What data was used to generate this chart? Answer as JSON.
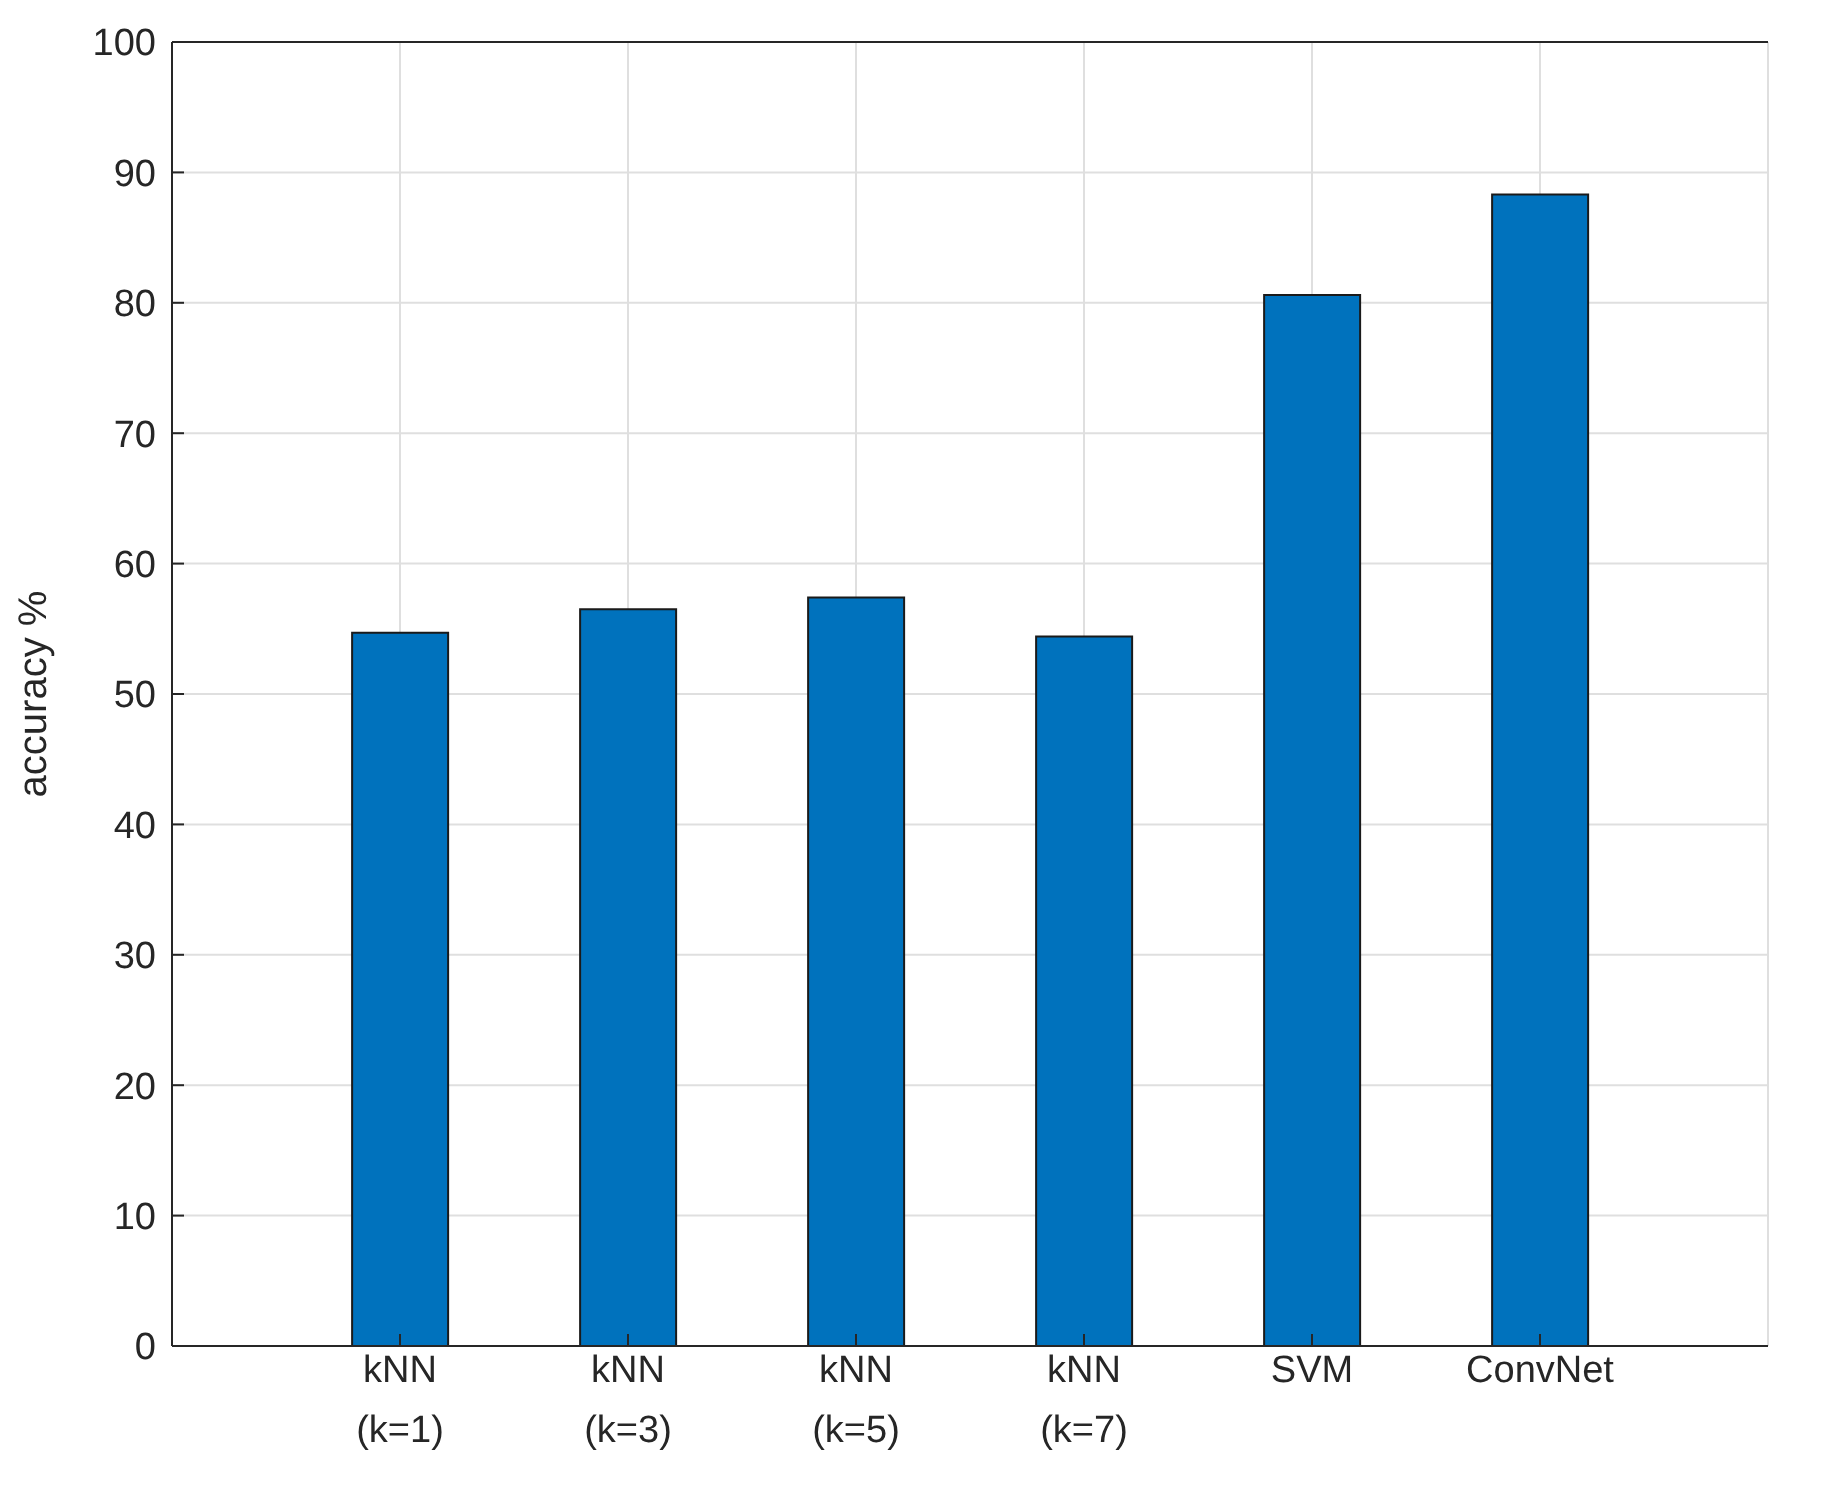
{
  "chart_data": {
    "type": "bar",
    "ylabel": "accuracy  %",
    "categories": [
      "kNN (k=1)",
      "kNN (k=3)",
      "kNN (k=5)",
      "kNN (k=7)",
      "SVM",
      "ConvNet"
    ],
    "values": [
      54.7,
      56.5,
      57.4,
      54.4,
      80.6,
      88.3
    ],
    "color": "#0072bd",
    "ylim": [
      0,
      100
    ],
    "yticks": [
      0,
      10,
      20,
      30,
      40,
      50,
      60,
      70,
      80,
      90,
      100
    ],
    "grid": true
  }
}
